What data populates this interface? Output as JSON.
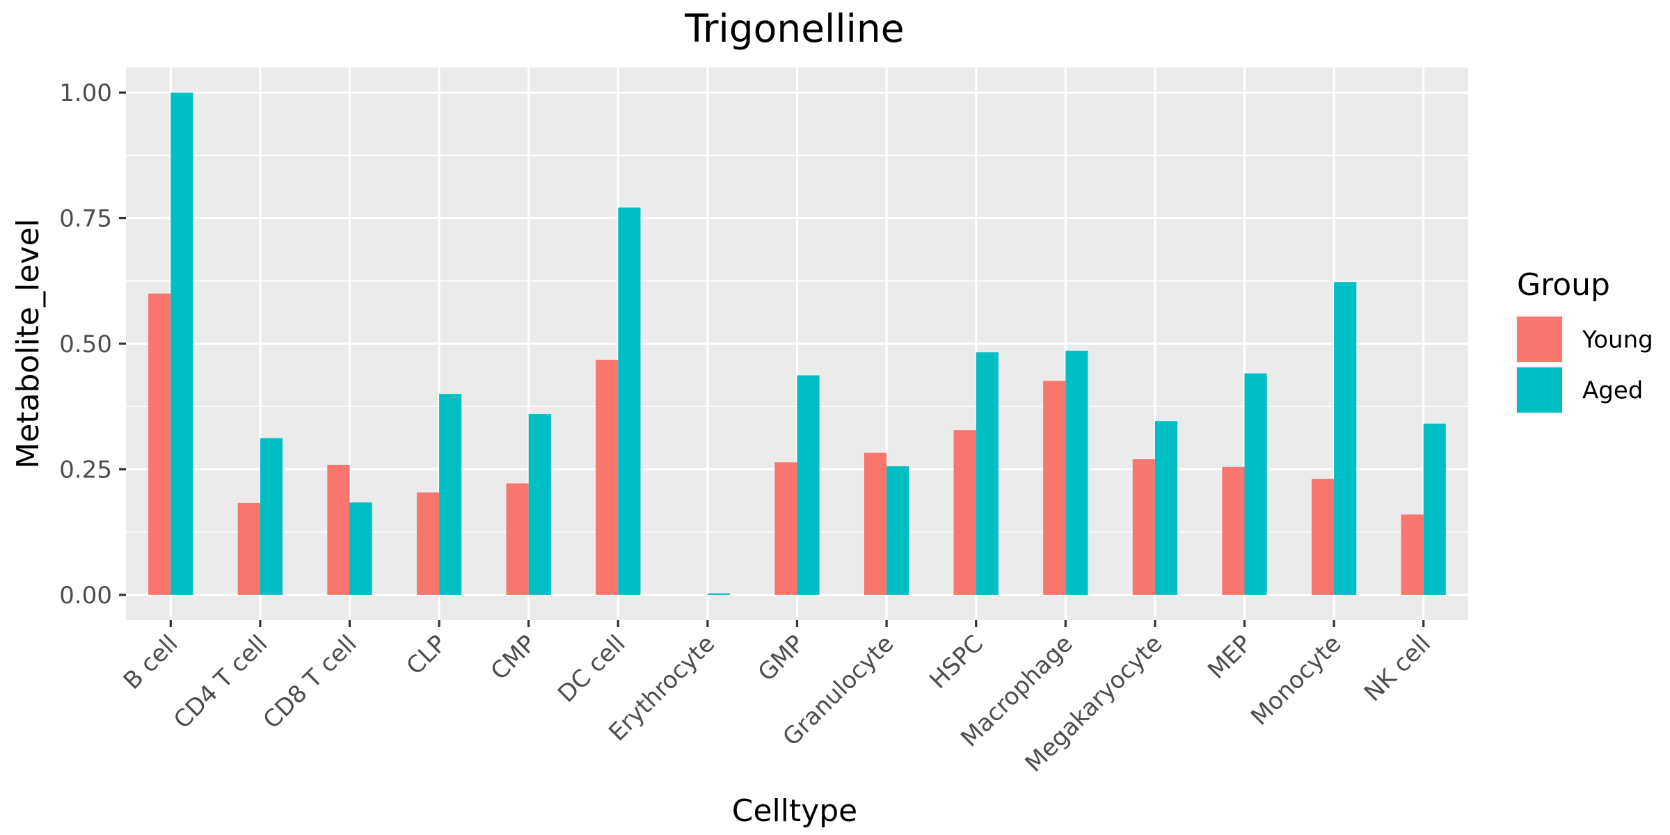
{
  "chart_data": {
    "type": "bar",
    "title": "Trigonelline",
    "xlabel": "Celltype",
    "ylabel": "Metabolite_level",
    "categories": [
      "B cell",
      "CD4 T cell",
      "CD8 T cell",
      "CLP",
      "CMP",
      "DC cell",
      "Erythrocyte",
      "GMP",
      "Granulocyte",
      "HSPC",
      "Macrophage",
      "Megakaryocyte",
      "MEP",
      "Monocyte",
      "NK cell"
    ],
    "series": [
      {
        "name": "Young",
        "color": "#F8766D",
        "values": [
          0.6,
          0.183,
          0.259,
          0.204,
          0.222,
          0.468,
          0.0,
          0.264,
          0.283,
          0.328,
          0.426,
          0.27,
          0.255,
          0.231,
          0.16
        ]
      },
      {
        "name": "Aged",
        "color": "#00BFC4",
        "values": [
          1.0,
          0.312,
          0.184,
          0.4,
          0.36,
          0.771,
          0.003,
          0.437,
          0.256,
          0.483,
          0.486,
          0.346,
          0.441,
          0.623,
          0.341
        ]
      }
    ],
    "ylim": [
      -0.05,
      1.05
    ],
    "yticks": [
      0.0,
      0.25,
      0.5,
      0.75,
      1.0
    ],
    "ytick_labels": [
      "0.00",
      "0.25",
      "0.50",
      "0.75",
      "1.00"
    ],
    "grid": true,
    "panel_background": "#EBEBEB",
    "grid_color": "#FFFFFF",
    "legend": {
      "title": "Group",
      "placement": "right"
    }
  }
}
